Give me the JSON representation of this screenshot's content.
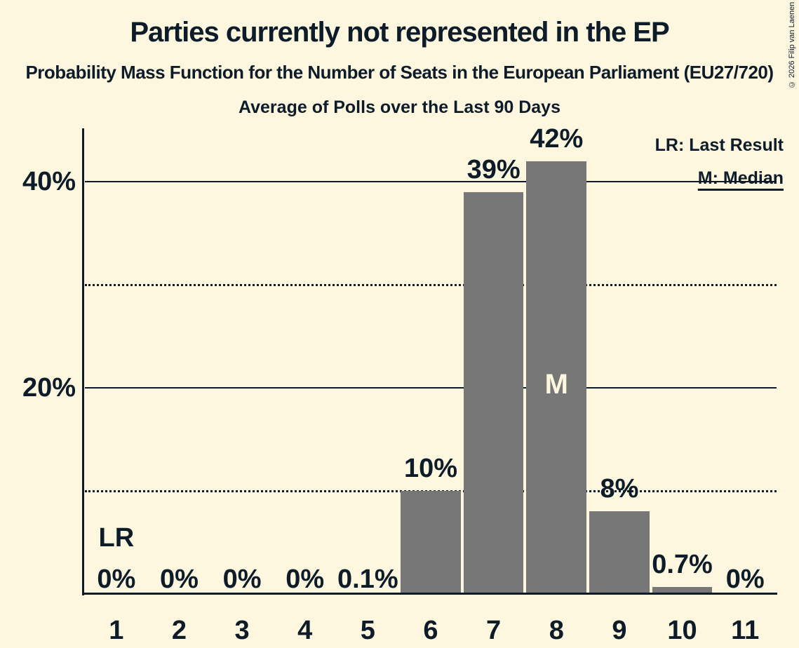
{
  "title": "Parties currently not represented in the EP",
  "subtitle": "Probability Mass Function for the Number of Seats in the European Parliament (EU27/720)",
  "period": "Average of Polls over the Last 90 Days",
  "copyright": "© 2026 Filip van Laenen",
  "legend": {
    "last_result": "LR: Last Result",
    "median": "M: Median"
  },
  "colors": {
    "background": "#fcf7de",
    "bar": "#777777",
    "text": "#0e1c2a",
    "median_text": "#fcf7de"
  },
  "chart_data": {
    "type": "bar",
    "title": "Parties currently not represented in the EP",
    "subtitle": "Probability Mass Function for the Number of Seats in the European Parliament (EU27/720)",
    "note": "Average of Polls over the Last 90 Days",
    "categories": [
      "1",
      "2",
      "3",
      "4",
      "5",
      "6",
      "7",
      "8",
      "9",
      "10",
      "11"
    ],
    "values": [
      0,
      0,
      0,
      0,
      0.1,
      10,
      39,
      42,
      8,
      0.7,
      0
    ],
    "bar_labels": [
      "0%",
      "0%",
      "0%",
      "0%",
      "0.1%",
      "10%",
      "39%",
      "42%",
      "8%",
      "0.7%",
      "0%"
    ],
    "ylim": [
      0,
      45
    ],
    "y_ticks": [
      {
        "value": 20,
        "label": "20%"
      },
      {
        "value": 40,
        "label": "40%"
      }
    ],
    "solid_gridlines_pct": [
      20,
      40
    ],
    "dotted_gridlines_pct": [
      10,
      30
    ],
    "legend_position": "top-right",
    "annotations": {
      "last_result_seats": "1",
      "last_result_marker": "LR",
      "median_seats": "8",
      "median_marker": "M"
    }
  }
}
